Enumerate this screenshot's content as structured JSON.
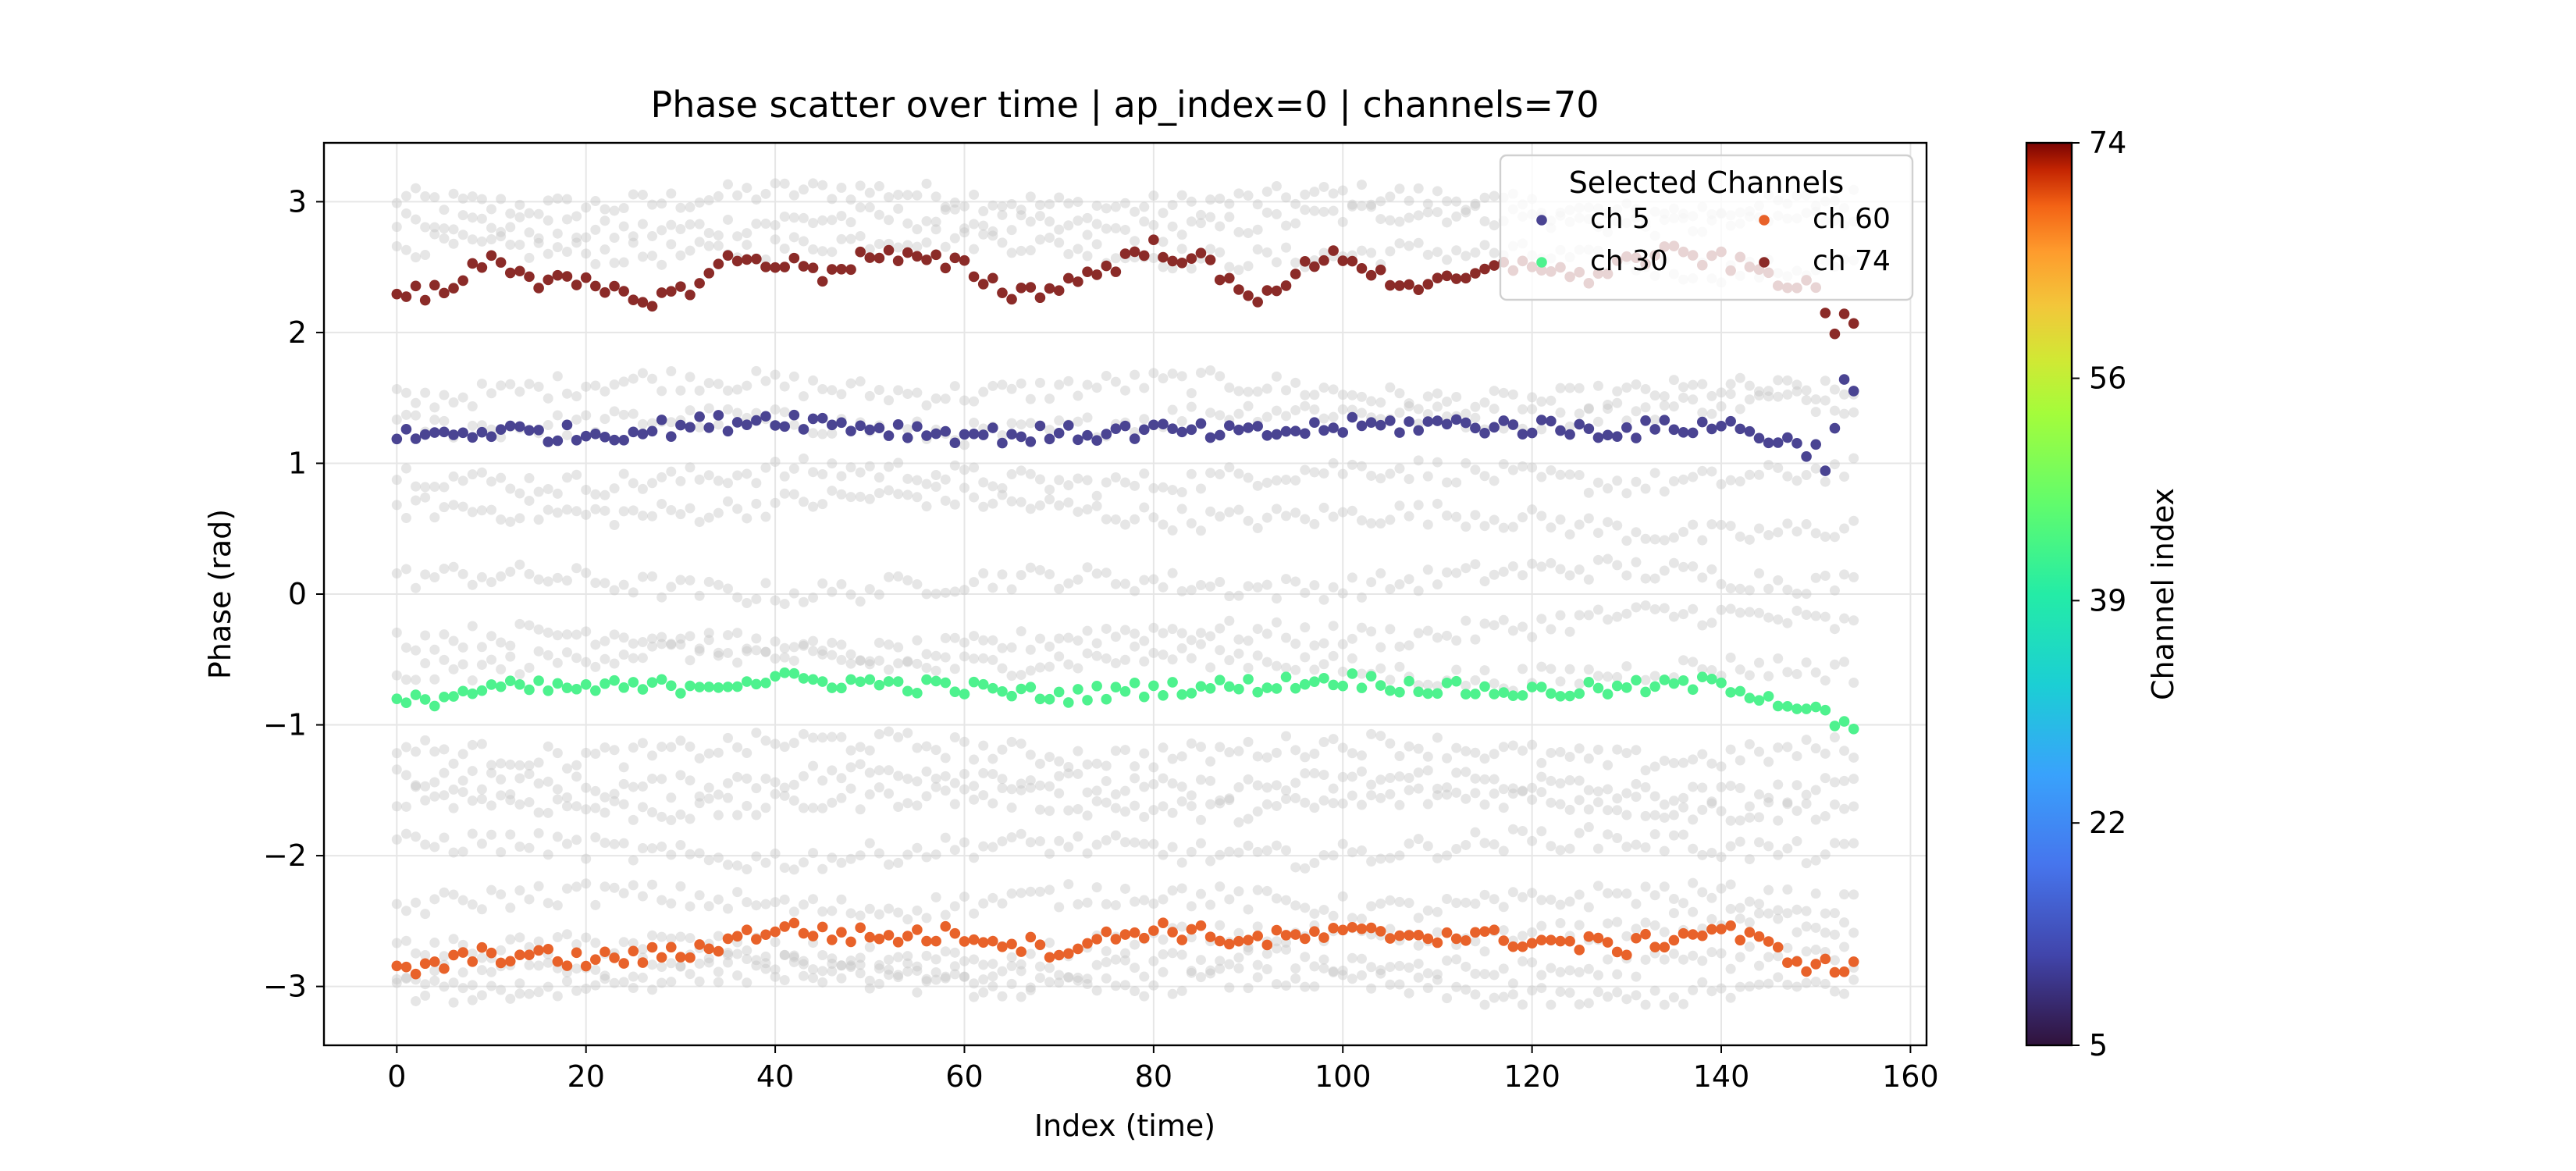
{
  "chart_data": {
    "type": "scatter",
    "title": "Phase scatter over time | ap_index=0 | channels=70",
    "xlabel": "Index (time)",
    "ylabel": "Phase (rad)",
    "xlim": [
      -7.7,
      161.7
    ],
    "ylim": [
      -3.45,
      3.45
    ],
    "xticks": [
      0,
      20,
      40,
      60,
      80,
      100,
      120,
      140,
      160
    ],
    "yticks": [
      -3,
      -2,
      -1,
      0,
      1,
      2,
      3
    ],
    "grid": true,
    "n_points": 155,
    "legend": {
      "title": "Selected Channels",
      "placement": "top-right",
      "columns": 2
    },
    "background_series": {
      "description": "all other channels",
      "color": "#c8c8c8",
      "band_centers": [
        3.0,
        2.85,
        2.6,
        1.55,
        1.35,
        0.9,
        0.6,
        0.1,
        -0.3,
        -0.55,
        -1.2,
        -1.45,
        -1.6,
        -1.95,
        -2.35,
        -2.65,
        -2.85,
        -3.0
      ]
    },
    "series": [
      {
        "name": "ch 5",
        "color": "#4a4492",
        "anchors_x": [
          0,
          10,
          20,
          30,
          40,
          50,
          60,
          70,
          80,
          90,
          100,
          110,
          120,
          130,
          140,
          150,
          151,
          153,
          154
        ],
        "anchors_y": [
          1.2,
          1.25,
          1.22,
          1.28,
          1.35,
          1.28,
          1.22,
          1.22,
          1.25,
          1.22,
          1.28,
          1.3,
          1.28,
          1.25,
          1.3,
          1.1,
          1.0,
          1.6,
          1.55
        ],
        "jitter": 0.07
      },
      {
        "name": "ch 30",
        "color": "#4ef28e",
        "anchors_x": [
          0,
          10,
          20,
          30,
          40,
          50,
          60,
          70,
          80,
          90,
          100,
          110,
          120,
          130,
          140,
          150,
          154
        ],
        "anchors_y": [
          -0.85,
          -0.72,
          -0.72,
          -0.7,
          -0.65,
          -0.68,
          -0.72,
          -0.78,
          -0.72,
          -0.7,
          -0.65,
          -0.72,
          -0.75,
          -0.72,
          -0.68,
          -0.9,
          -1.05
        ],
        "jitter": 0.06
      },
      {
        "name": "ch 60",
        "color": "#e8622a",
        "anchors_x": [
          0,
          10,
          20,
          30,
          40,
          50,
          60,
          70,
          80,
          90,
          100,
          110,
          120,
          130,
          140,
          150,
          154
        ],
        "anchors_y": [
          -2.9,
          -2.75,
          -2.8,
          -2.75,
          -2.55,
          -2.62,
          -2.6,
          -2.72,
          -2.55,
          -2.65,
          -2.6,
          -2.6,
          -2.65,
          -2.7,
          -2.55,
          -2.85,
          -2.85
        ],
        "jitter": 0.07
      },
      {
        "name": "ch 74",
        "color": "#8b2b28",
        "anchors_x": [
          0,
          5,
          10,
          15,
          20,
          25,
          30,
          35,
          40,
          45,
          50,
          55,
          60,
          65,
          70,
          75,
          80,
          85,
          90,
          95,
          100,
          105,
          110,
          115,
          120,
          125,
          130,
          135,
          140,
          145,
          150,
          152,
          153,
          154
        ],
        "anchors_y": [
          2.3,
          2.3,
          2.6,
          2.4,
          2.35,
          2.25,
          2.3,
          2.55,
          2.55,
          2.45,
          2.6,
          2.55,
          2.5,
          2.3,
          2.35,
          2.5,
          2.65,
          2.55,
          2.25,
          2.45,
          2.6,
          2.4,
          2.35,
          2.45,
          2.55,
          2.4,
          2.55,
          2.6,
          2.55,
          2.45,
          2.3,
          2.05,
          2.1,
          2.0
        ],
        "jitter": 0.07
      }
    ],
    "colorbar": {
      "label": "Channel index",
      "min": 5,
      "max": 74,
      "ticks": [
        5,
        22,
        39,
        56,
        74
      ],
      "colormap": "turbo"
    }
  }
}
